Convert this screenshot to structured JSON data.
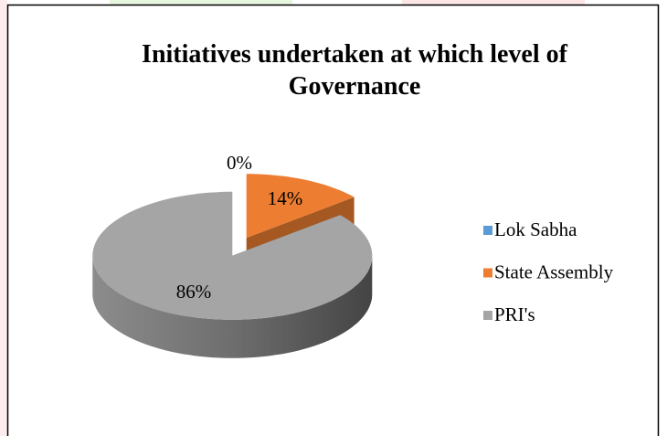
{
  "chart_data": {
    "type": "pie",
    "title": "Initiatives undertaken at which level of Governance",
    "categories": [
      "Lok Sabha",
      "State Assembly",
      "PRI's"
    ],
    "values": [
      0,
      14,
      86
    ],
    "value_labels": [
      "0%",
      "14%",
      "86%"
    ],
    "colors": [
      "#5b9bd5",
      "#ed7d31",
      "#a5a5a5"
    ],
    "legend": "right"
  }
}
